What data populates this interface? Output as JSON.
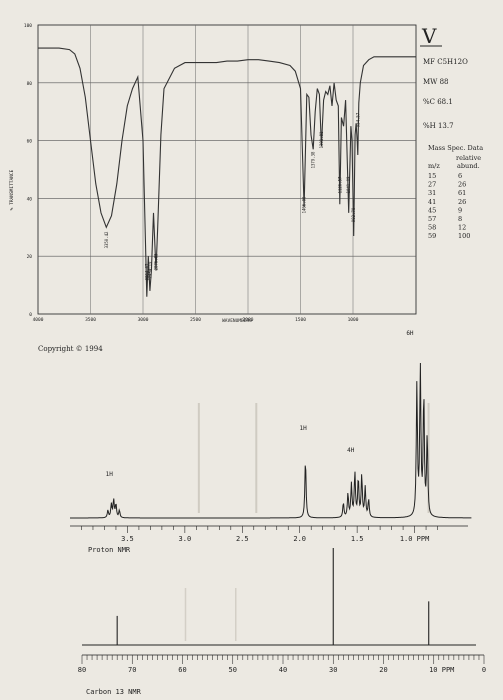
{
  "sheet": {
    "roman_numeral": "V",
    "formula": "MF C5H12O",
    "mw": "MW 88",
    "carbon": "%C 68.1",
    "hydrogen": "%H 13.7",
    "copyright": "Copyright © 1994"
  },
  "mass_spec": {
    "title": "Mass Spec. Data",
    "col1_header": "m/z",
    "col2_header_line1": "relative",
    "col2_header_line2": "abund.",
    "rows": [
      {
        "mz": "15",
        "abund": "6"
      },
      {
        "mz": "27",
        "abund": "26"
      },
      {
        "mz": "31",
        "abund": "61"
      },
      {
        "mz": "41",
        "abund": "26"
      },
      {
        "mz": "45",
        "abund": "9"
      },
      {
        "mz": "57",
        "abund": "8"
      },
      {
        "mz": "58",
        "abund": "12"
      },
      {
        "mz": "59",
        "abund": "100"
      }
    ]
  },
  "chart_data": [
    {
      "type": "line",
      "ylabel": "% TRANSMITTANCE",
      "xlabel": "WAVENUMBERS",
      "xlim": [
        4000,
        400
      ],
      "ylim": [
        0,
        100
      ],
      "x_ticks": [
        "4000",
        "3500",
        "3000",
        "2500",
        "2000",
        "1500",
        "1000"
      ],
      "y_ticks": [
        "100",
        "80",
        "60",
        "40",
        "20",
        "0"
      ],
      "peak_labels": [
        {
          "x": 3350,
          "text": "3350.42"
        },
        {
          "x": 2964,
          "text": "2964.67"
        },
        {
          "x": 2934,
          "text": "2934.19"
        },
        {
          "x": 2876,
          "text": "2876.03"
        },
        {
          "x": 1466,
          "text": "1466.00"
        },
        {
          "x": 1379,
          "text": "1379.38"
        },
        {
          "x": 1301,
          "text": "1301.81"
        },
        {
          "x": 1126,
          "text": "1126.57"
        },
        {
          "x": 1041,
          "text": "1041.09"
        },
        {
          "x": 993,
          "text": "993.70"
        },
        {
          "x": 954,
          "text": "954.57"
        }
      ],
      "series": [
        {
          "x": [
            4000,
            3900,
            3800,
            3700,
            3650,
            3600,
            3550,
            3500,
            3450,
            3400,
            3350,
            3300,
            3250,
            3200,
            3150,
            3100,
            3050,
            3000,
            2964,
            2950,
            2934,
            2920,
            2900,
            2876,
            2860,
            2830,
            2800,
            2700,
            2600,
            2500,
            2400,
            2300,
            2200,
            2100,
            2000,
            1900,
            1800,
            1700,
            1600,
            1550,
            1500,
            1466,
            1440,
            1420,
            1400,
            1379,
            1360,
            1340,
            1320,
            1301,
            1280,
            1260,
            1240,
            1220,
            1200,
            1180,
            1160,
            1140,
            1126,
            1110,
            1090,
            1070,
            1041,
            1020,
            1010,
            993,
            980,
            970,
            960,
            954,
            945,
            930,
            900,
            850,
            800,
            750,
            700,
            650,
            600,
            550,
            500,
            450,
            400
          ],
          "y": [
            92,
            92,
            92,
            91.5,
            90,
            85,
            75,
            60,
            45,
            35,
            30,
            34,
            45,
            60,
            72,
            78,
            82,
            60,
            6,
            20,
            8,
            15,
            35,
            15,
            30,
            62,
            78,
            85,
            87,
            87,
            87,
            87,
            87.5,
            87.5,
            88,
            88,
            87.5,
            87,
            86,
            84,
            78,
            37,
            76,
            75,
            62,
            57,
            70,
            78,
            76,
            58,
            74,
            77,
            76,
            79,
            72,
            80,
            74,
            72,
            38,
            68,
            65,
            74,
            35,
            65,
            60,
            27,
            62,
            66,
            60,
            55,
            73,
            80,
            86,
            88,
            89,
            89,
            89,
            89,
            89,
            89,
            89,
            89,
            89
          ]
        }
      ]
    },
    {
      "type": "line",
      "xlabel": "Proton NMR",
      "xlim": [
        4.0,
        0.5
      ],
      "x_ticks": [
        "3.5",
        "3.0",
        "2.5",
        "2.0",
        "1.5",
        "1.0 PPM"
      ],
      "integrations": [
        {
          "ppm": 3.62,
          "text": "1H"
        },
        {
          "ppm": 1.95,
          "text": "1H"
        },
        {
          "ppm": 1.5,
          "text": "4H"
        },
        {
          "ppm": 0.95,
          "text": "6H"
        }
      ],
      "peaks": [
        {
          "ppm": 3.67,
          "height": 0.05
        },
        {
          "ppm": 3.64,
          "height": 0.09
        },
        {
          "ppm": 3.62,
          "height": 0.12
        },
        {
          "ppm": 3.6,
          "height": 0.09
        },
        {
          "ppm": 3.57,
          "height": 0.05
        },
        {
          "ppm": 1.95,
          "height": 0.4
        },
        {
          "ppm": 1.62,
          "height": 0.1
        },
        {
          "ppm": 1.58,
          "height": 0.16
        },
        {
          "ppm": 1.55,
          "height": 0.22
        },
        {
          "ppm": 1.52,
          "height": 0.3
        },
        {
          "ppm": 1.49,
          "height": 0.26
        },
        {
          "ppm": 1.46,
          "height": 0.28
        },
        {
          "ppm": 1.43,
          "height": 0.2
        },
        {
          "ppm": 1.4,
          "height": 0.12
        },
        {
          "ppm": 0.98,
          "height": 0.88
        },
        {
          "ppm": 0.95,
          "height": 1.0
        },
        {
          "ppm": 0.92,
          "height": 0.82
        },
        {
          "ppm": 0.89,
          "height": 0.55
        }
      ]
    },
    {
      "type": "line",
      "xlabel": "Carbon 13 NMR",
      "xlim": [
        80,
        0
      ],
      "x_ticks": [
        "80",
        "70",
        "60",
        "50",
        "40",
        "30",
        "20",
        "10 PPM",
        "0"
      ],
      "peaks": [
        {
          "ppm": 73,
          "height": 0.3
        },
        {
          "ppm": 30,
          "height": 1.0
        },
        {
          "ppm": 11,
          "height": 0.45
        }
      ]
    }
  ]
}
